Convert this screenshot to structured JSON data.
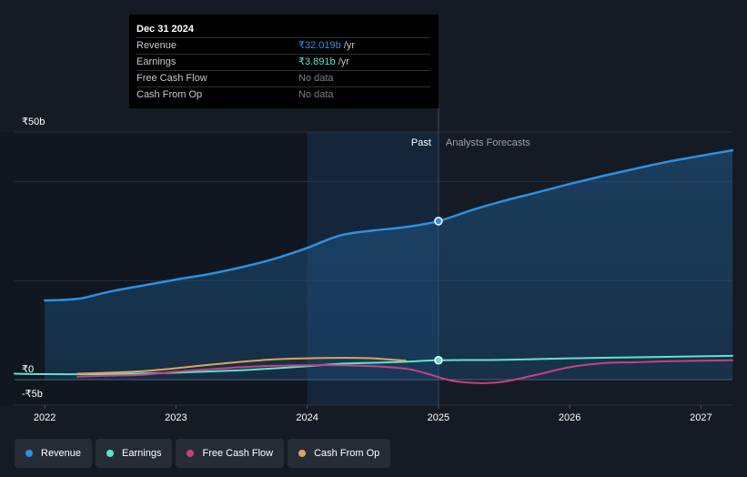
{
  "tooltip": {
    "date": "Dec 31 2024",
    "rows": [
      {
        "label": "Revenue",
        "value": "₹32.019b",
        "unit": " /yr",
        "color": "#2e8fe0"
      },
      {
        "label": "Earnings",
        "value": "₹3.891b",
        "unit": " /yr",
        "color": "#5fe3cf"
      },
      {
        "label": "Free Cash Flow",
        "value": "No data",
        "unit": "",
        "color": "#7b7e84"
      },
      {
        "label": "Cash From Op",
        "value": "No data",
        "unit": "",
        "color": "#7b7e84"
      }
    ]
  },
  "legend": [
    {
      "label": "Revenue",
      "color": "#2e8fe0"
    },
    {
      "label": "Earnings",
      "color": "#5fe3cf"
    },
    {
      "label": "Free Cash Flow",
      "color": "#c4437f"
    },
    {
      "label": "Cash From Op",
      "color": "#e0a458"
    }
  ],
  "chart_data": {
    "type": "line",
    "title": "",
    "ylabel": "",
    "xlabel": "",
    "y_tick_labels": [
      {
        "label": "₹50b",
        "value": 50
      },
      {
        "label": "₹0",
        "value": 0
      },
      {
        "label": "-₹5b",
        "value": -5
      }
    ],
    "x_tick_labels": [
      {
        "label": "2022",
        "value": 2022.0
      },
      {
        "label": "2023",
        "value": 2023.0
      },
      {
        "label": "2024",
        "value": 2024.0
      },
      {
        "label": "2025",
        "value": 2025.0
      },
      {
        "label": "2026",
        "value": 2026.0
      },
      {
        "label": "2027",
        "value": 2027.0
      }
    ],
    "xlim": [
      2021.77,
      2027.24
    ],
    "ylim": [
      -5,
      50
    ],
    "past_label": "Past",
    "forecast_label": "Analysts Forecasts",
    "divider_x": 2025.0,
    "highlight_range": [
      2024.0,
      2025.0
    ],
    "series": [
      {
        "name": "Revenue",
        "color": "#2e8fe0",
        "width": 2.5,
        "fill": true,
        "marker_x": 2025.0,
        "points": [
          [
            2022.0,
            16.0
          ],
          [
            2022.25,
            16.3
          ],
          [
            2022.5,
            17.8
          ],
          [
            2022.75,
            19.0
          ],
          [
            2023.0,
            20.2
          ],
          [
            2023.25,
            21.3
          ],
          [
            2023.5,
            22.7
          ],
          [
            2023.75,
            24.4
          ],
          [
            2024.0,
            26.6
          ],
          [
            2024.25,
            29.1
          ],
          [
            2024.5,
            30.1
          ],
          [
            2024.75,
            30.8
          ],
          [
            2025.0,
            32.0
          ],
          [
            2025.25,
            34.2
          ],
          [
            2025.5,
            36.1
          ],
          [
            2025.75,
            37.8
          ],
          [
            2026.0,
            39.5
          ],
          [
            2026.25,
            41.1
          ],
          [
            2026.5,
            42.6
          ],
          [
            2026.75,
            44.0
          ],
          [
            2027.0,
            45.2
          ],
          [
            2027.24,
            46.3
          ]
        ]
      },
      {
        "name": "Earnings",
        "color": "#5fe3cf",
        "width": 2,
        "fill": false,
        "marker_x": 2025.0,
        "points": [
          [
            2021.77,
            1.2
          ],
          [
            2022.0,
            1.1
          ],
          [
            2022.5,
            1.1
          ],
          [
            2023.0,
            1.4
          ],
          [
            2023.5,
            1.9
          ],
          [
            2024.0,
            2.7
          ],
          [
            2024.25,
            3.2
          ],
          [
            2024.5,
            3.4
          ],
          [
            2024.75,
            3.6
          ],
          [
            2025.0,
            3.9
          ],
          [
            2025.5,
            4.0
          ],
          [
            2026.0,
            4.3
          ],
          [
            2026.5,
            4.5
          ],
          [
            2027.0,
            4.7
          ],
          [
            2027.24,
            4.8
          ]
        ]
      },
      {
        "name": "Free Cash Flow",
        "color": "#c4437f",
        "width": 2,
        "fill": false,
        "points": [
          [
            2022.25,
            0.6
          ],
          [
            2022.5,
            0.8
          ],
          [
            2022.75,
            1.0
          ],
          [
            2023.0,
            1.6
          ],
          [
            2023.25,
            2.1
          ],
          [
            2023.5,
            2.5
          ],
          [
            2023.75,
            2.8
          ],
          [
            2024.0,
            2.9
          ],
          [
            2024.25,
            2.9
          ],
          [
            2024.5,
            2.7
          ],
          [
            2024.75,
            2.2
          ],
          [
            2024.9,
            1.3
          ],
          [
            2025.1,
            -0.2
          ],
          [
            2025.3,
            -0.7
          ],
          [
            2025.5,
            -0.4
          ],
          [
            2025.75,
            1.0
          ],
          [
            2026.0,
            2.5
          ],
          [
            2026.25,
            3.3
          ],
          [
            2026.5,
            3.5
          ],
          [
            2026.75,
            3.7
          ],
          [
            2027.0,
            3.8
          ],
          [
            2027.24,
            3.9
          ]
        ]
      },
      {
        "name": "Cash From Op",
        "color": "#e0a458",
        "width": 2,
        "fill": false,
        "points": [
          [
            2022.25,
            1.2
          ],
          [
            2022.5,
            1.4
          ],
          [
            2022.75,
            1.7
          ],
          [
            2023.0,
            2.3
          ],
          [
            2023.25,
            3.0
          ],
          [
            2023.5,
            3.6
          ],
          [
            2023.75,
            4.1
          ],
          [
            2024.0,
            4.3
          ],
          [
            2024.25,
            4.4
          ],
          [
            2024.5,
            4.3
          ],
          [
            2024.75,
            3.8
          ]
        ]
      }
    ]
  }
}
